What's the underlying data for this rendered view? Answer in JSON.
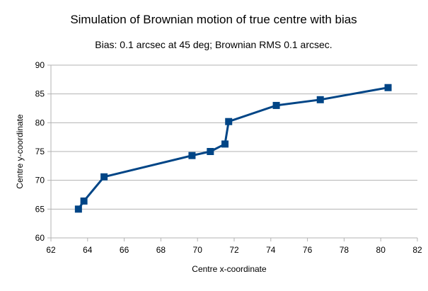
{
  "chart_data": {
    "type": "line",
    "title": "Simulation of Brownian motion of true centre with bias",
    "subtitle": "Bias: 0.1 arcsec at 45 deg; Brownian RMS 0.1 arcsec.",
    "xlabel": "Centre x-coordinate",
    "ylabel": "Centre y-coordinate",
    "xlim": [
      62,
      82
    ],
    "ylim": [
      60,
      90
    ],
    "x_ticks": [
      62,
      64,
      66,
      68,
      70,
      72,
      74,
      76,
      78,
      80,
      82
    ],
    "y_ticks": [
      60,
      65,
      70,
      75,
      80,
      85,
      90
    ],
    "grid": "horizontal",
    "legend": "none",
    "marker": "square",
    "series": [
      {
        "name": "true centre",
        "color": "#004586",
        "points": [
          {
            "x": 63.5,
            "y": 65.0
          },
          {
            "x": 63.8,
            "y": 66.4
          },
          {
            "x": 64.9,
            "y": 70.6
          },
          {
            "x": 69.7,
            "y": 74.3
          },
          {
            "x": 70.7,
            "y": 75.0
          },
          {
            "x": 71.5,
            "y": 76.3
          },
          {
            "x": 71.7,
            "y": 80.2
          },
          {
            "x": 74.3,
            "y": 83.0
          },
          {
            "x": 76.7,
            "y": 84.0
          },
          {
            "x": 80.4,
            "y": 86.1
          }
        ]
      }
    ]
  }
}
